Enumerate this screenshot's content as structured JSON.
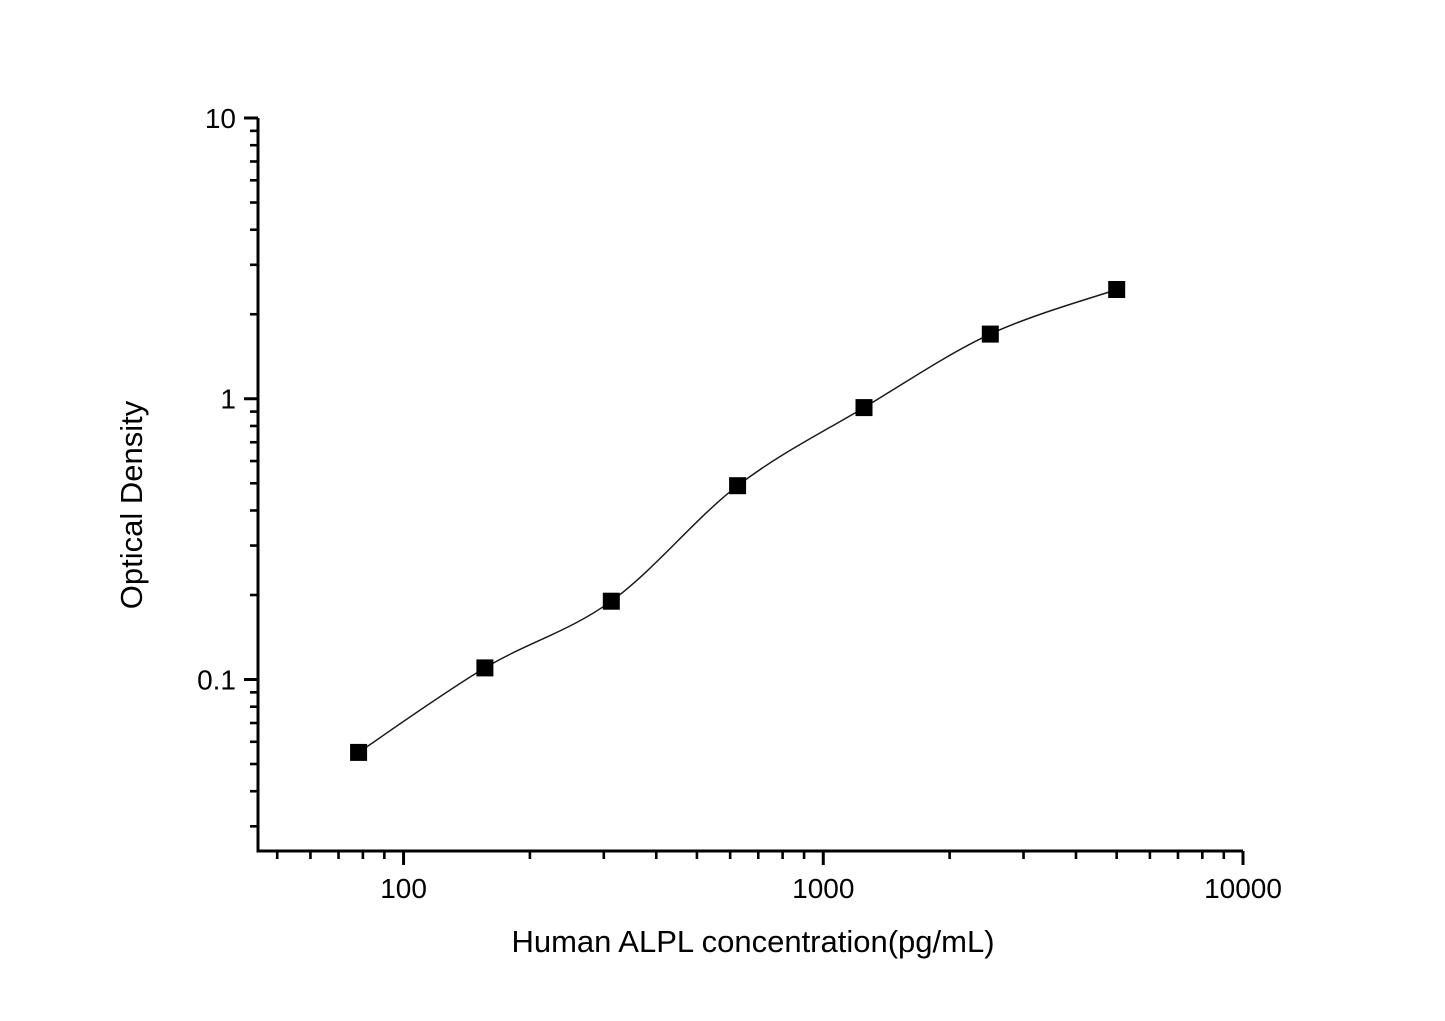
{
  "page": {
    "background": "#ffffff"
  },
  "chart_data": {
    "type": "line",
    "title": "",
    "xlabel": "Human ALPL concentration(pg/mL)",
    "ylabel": "Optical Density",
    "x_scale": "log",
    "y_scale": "log",
    "x_range": [
      45,
      10000
    ],
    "y_range": [
      0.0245,
      10
    ],
    "grid": false,
    "legend": "none",
    "axis_color": "#000000",
    "text_color": "#000000",
    "background_color": "#ffffff",
    "x_ticks": [
      {
        "value": 100,
        "label": "100"
      },
      {
        "value": 1000,
        "label": "1000"
      },
      {
        "value": 10000,
        "label": "10000"
      }
    ],
    "y_ticks": [
      {
        "value": 0.1,
        "label": "0.1"
      },
      {
        "value": 1,
        "label": "1"
      },
      {
        "value": 10,
        "label": "10"
      }
    ],
    "series": [
      {
        "name": "standard-curve",
        "marker": "filled-square",
        "marker_color": "#000000",
        "line_color": "#1a1a1a",
        "x": [
          78.125,
          156.25,
          312.5,
          625,
          1250,
          2500,
          5000
        ],
        "y": [
          0.055,
          0.11,
          0.19,
          0.49,
          0.93,
          1.7,
          2.45
        ]
      }
    ]
  }
}
